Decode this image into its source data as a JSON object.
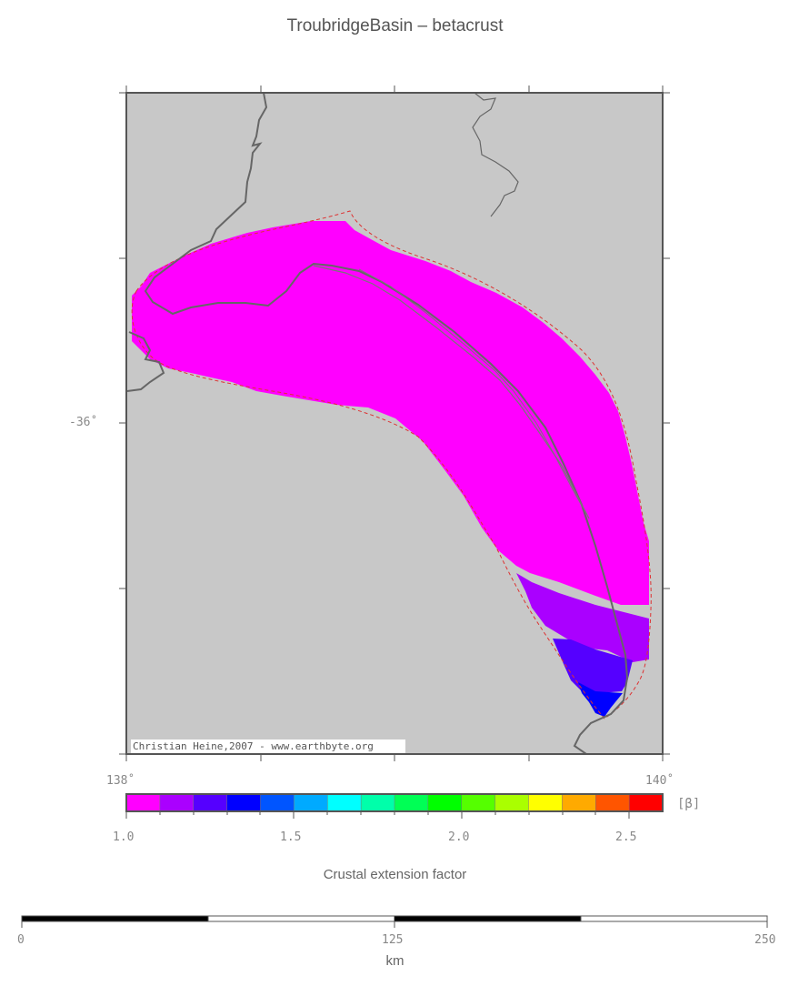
{
  "title": "TroubridgeBasin – betacrust",
  "map": {
    "lat_label": "-36˚",
    "lon_labels": [
      "138˚",
      "140˚"
    ],
    "credit": "Christian Heine,2007 - www.earthbyte.org",
    "background_color": "#c8c8c8",
    "basin_color": "#ff00ff",
    "outline_color": "#dd3333",
    "coast_color": "#666666"
  },
  "colorbar": {
    "colors": [
      "#ff00ff",
      "#aa00ff",
      "#5500ff",
      "#0000ff",
      "#0055ff",
      "#00aaff",
      "#00ffff",
      "#00ffaa",
      "#00ff55",
      "#00ff00",
      "#55ff00",
      "#aaff00",
      "#ffff00",
      "#ffaa00",
      "#ff5500",
      "#ff0000"
    ],
    "ticks": [
      "1.0",
      "1.5",
      "2.0",
      "2.5"
    ],
    "unit": "[β]",
    "label": "Crustal extension factor"
  },
  "scalebar": {
    "ticks": [
      "0",
      "125",
      "250"
    ],
    "unit": "km"
  }
}
